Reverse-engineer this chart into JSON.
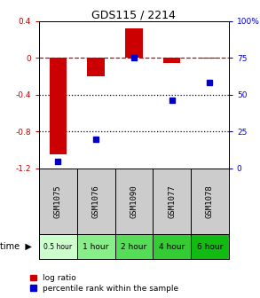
{
  "title": "GDS115 / 2214",
  "samples": [
    "GSM1075",
    "GSM1076",
    "GSM1090",
    "GSM1077",
    "GSM1078"
  ],
  "time_labels": [
    "0.5 hour",
    "1 hour",
    "2 hour",
    "4 hour",
    "6 hour"
  ],
  "time_colors": [
    "#ccffcc",
    "#88ee88",
    "#55dd55",
    "#33cc33",
    "#11bb11"
  ],
  "log_ratios": [
    -1.05,
    -0.2,
    0.32,
    -0.06,
    -0.01
  ],
  "percentile_ranks": [
    5,
    20,
    75,
    46,
    58
  ],
  "bar_color": "#cc0000",
  "dot_color": "#0000cc",
  "ylim_left": [
    -1.2,
    0.4
  ],
  "ylim_right": [
    0,
    100
  ],
  "yticks_left": [
    -1.2,
    -0.8,
    -0.4,
    0.0,
    0.4
  ],
  "ytick_labels_left": [
    "-1.2",
    "-0.8",
    "-0.4",
    "0",
    "0.4"
  ],
  "yticks_right": [
    0,
    25,
    50,
    75,
    100
  ],
  "ytick_labels_right": [
    "0",
    "25",
    "50",
    "75",
    "100%"
  ],
  "hline_y": 0,
  "dotted_lines": [
    -0.4,
    -0.8
  ],
  "legend_log_ratio": "log ratio",
  "legend_percentile": "percentile rank within the sample",
  "sample_bg": "#cccccc"
}
